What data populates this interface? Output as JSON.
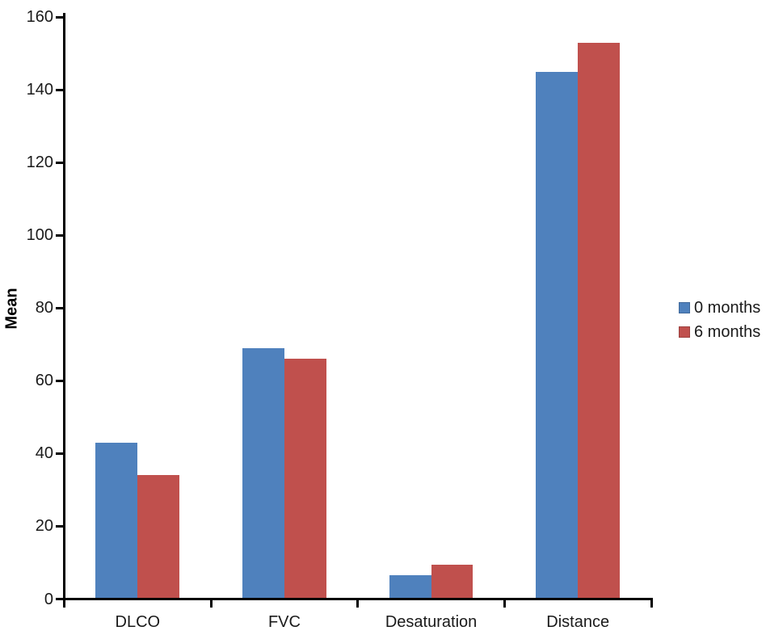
{
  "chart_data": {
    "type": "bar",
    "title": "",
    "xlabel": "",
    "ylabel": "Mean",
    "categories": [
      "DLCO",
      "FVC",
      "Desaturation",
      "Distance"
    ],
    "series": [
      {
        "name": "0 months",
        "color": "#4F81BD",
        "values": [
          43,
          69,
          6.5,
          145
        ]
      },
      {
        "name": "6 months",
        "color": "#C0504D",
        "values": [
          34,
          66,
          9.5,
          153
        ]
      }
    ],
    "ylim": [
      0,
      160
    ],
    "ytick_step": 20,
    "grid": false,
    "legend_position": "right",
    "gap_width_percent": 150,
    "colors": {
      "axis": "#000000",
      "text": "#1a1a1a",
      "background": "#FFFFFF"
    }
  }
}
